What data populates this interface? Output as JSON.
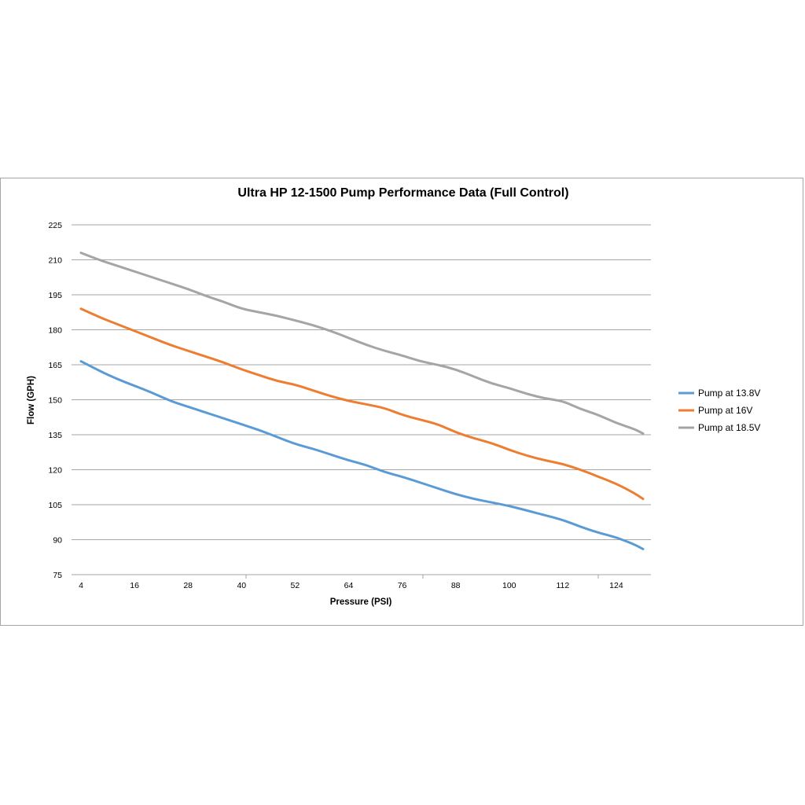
{
  "chart_data": {
    "type": "line",
    "title": "Ultra HP 12-1500 Pump Performance Data (Full Control)",
    "xlabel": "Pressure (PSI)",
    "ylabel": "Flow (GPH)",
    "xlim": [
      4,
      130
    ],
    "ylim": [
      75,
      225
    ],
    "x_ticks": [
      4,
      16,
      28,
      40,
      52,
      64,
      76,
      88,
      100,
      112,
      124
    ],
    "y_ticks": [
      75,
      90,
      105,
      120,
      135,
      150,
      165,
      180,
      195,
      210,
      225
    ],
    "grid": true,
    "legend_position": "right",
    "x": [
      4,
      8,
      12,
      16,
      20,
      24,
      28,
      32,
      36,
      40,
      44,
      48,
      52,
      56,
      60,
      64,
      68,
      72,
      76,
      80,
      84,
      88,
      92,
      96,
      100,
      104,
      108,
      112,
      116,
      120,
      124,
      128,
      130
    ],
    "series": [
      {
        "name": "Pump at 13.8V",
        "color": "#5b9bd5",
        "values": [
          166.5,
          162.5,
          159.0,
          156.0,
          153.0,
          149.5,
          147.0,
          144.5,
          142.0,
          139.5,
          137.0,
          134.0,
          131.0,
          129.0,
          126.5,
          124.0,
          122.0,
          119.0,
          117.0,
          114.5,
          112.0,
          109.5,
          107.5,
          106.0,
          104.5,
          102.5,
          100.5,
          98.5,
          95.5,
          93.0,
          91.0,
          88.0,
          86.0
        ]
      },
      {
        "name": "Pump at 16V",
        "color": "#ed7d31",
        "values": [
          189.0,
          185.5,
          182.5,
          179.5,
          176.5,
          173.5,
          171.0,
          168.5,
          166.0,
          163.0,
          160.5,
          158.0,
          156.5,
          154.0,
          151.5,
          149.5,
          148.0,
          146.5,
          143.5,
          141.5,
          139.5,
          136.0,
          133.5,
          131.5,
          128.5,
          126.0,
          124.0,
          122.5,
          120.0,
          117.0,
          114.0,
          110.0,
          107.5
        ]
      },
      {
        "name": "Pump at 18.5V",
        "color": "#a5a5a5",
        "values": [
          213.0,
          210.0,
          207.5,
          205.0,
          202.5,
          200.0,
          197.5,
          194.5,
          192.0,
          189.0,
          187.5,
          186.0,
          184.0,
          182.0,
          179.5,
          176.5,
          173.5,
          171.0,
          169.0,
          166.5,
          165.0,
          163.0,
          160.0,
          157.0,
          155.0,
          152.5,
          150.5,
          149.5,
          146.0,
          143.5,
          140.0,
          137.5,
          135.5
        ]
      }
    ]
  }
}
